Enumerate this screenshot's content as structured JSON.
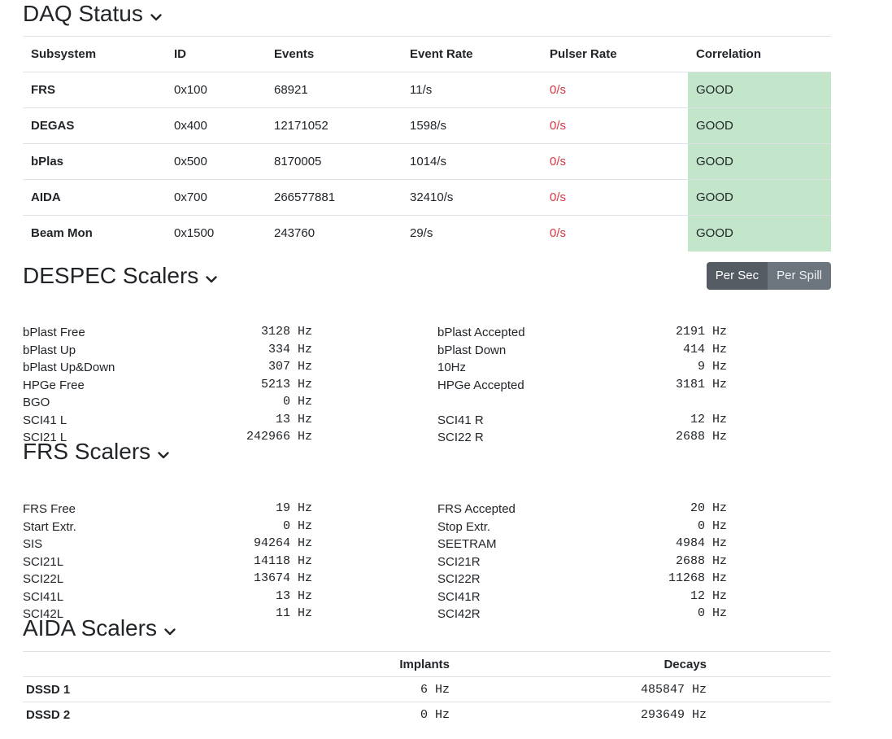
{
  "daq": {
    "title": "DAQ Status",
    "columns": [
      "Subsystem",
      "ID",
      "Events",
      "Event Rate",
      "Pulser Rate",
      "Correlation"
    ],
    "rows": [
      {
        "subsystem": "FRS",
        "id": "0x100",
        "events": "68921",
        "event_rate": "11/s",
        "pulser_rate": "0/s",
        "correlation": "GOOD"
      },
      {
        "subsystem": "DEGAS",
        "id": "0x400",
        "events": "12171052",
        "event_rate": "1598/s",
        "pulser_rate": "0/s",
        "correlation": "GOOD"
      },
      {
        "subsystem": "bPlas",
        "id": "0x500",
        "events": "8170005",
        "event_rate": "1014/s",
        "pulser_rate": "0/s",
        "correlation": "GOOD"
      },
      {
        "subsystem": "AIDA",
        "id": "0x700",
        "events": "266577881",
        "event_rate": "32410/s",
        "pulser_rate": "0/s",
        "correlation": "GOOD"
      },
      {
        "subsystem": "Beam Mon",
        "id": "0x1500",
        "events": "243760",
        "event_rate": "29/s",
        "pulser_rate": "0/s",
        "correlation": "GOOD"
      }
    ]
  },
  "despec": {
    "title": "DESPEC Scalers",
    "buttons": {
      "per_sec": "Per Sec",
      "per_spill": "Per Spill"
    },
    "left": [
      {
        "label": "bPlast Free",
        "value": "3128 Hz"
      },
      {
        "label": "bPlast Up",
        "value": "334 Hz"
      },
      {
        "label": "bPlast Up&Down",
        "value": "307 Hz"
      },
      {
        "label": "HPGe Free",
        "value": "5213 Hz"
      },
      {
        "label": "BGO",
        "value": "0 Hz"
      },
      {
        "label": "SCI41 L",
        "value": "13 Hz"
      },
      {
        "label": "SCI21 L",
        "value": "242966 Hz"
      }
    ],
    "right": [
      {
        "label": "bPlast Accepted",
        "value": "2191 Hz"
      },
      {
        "label": "bPlast Down",
        "value": "414 Hz"
      },
      {
        "label": "10Hz",
        "value": "9 Hz"
      },
      {
        "label": "HPGe Accepted",
        "value": "3181 Hz"
      },
      {
        "label": "",
        "value": ""
      },
      {
        "label": "SCI41 R",
        "value": "12 Hz"
      },
      {
        "label": "SCI22 R",
        "value": "2688 Hz"
      }
    ]
  },
  "frs": {
    "title": "FRS Scalers",
    "left": [
      {
        "label": "FRS Free",
        "value": "19 Hz"
      },
      {
        "label": "Start Extr.",
        "value": "0 Hz"
      },
      {
        "label": "SIS",
        "value": "94264 Hz"
      },
      {
        "label": "SCI21L",
        "value": "14118 Hz"
      },
      {
        "label": "SCI22L",
        "value": "13674 Hz"
      },
      {
        "label": "SCI41L",
        "value": "13 Hz"
      },
      {
        "label": "SCI42L",
        "value": "11 Hz"
      }
    ],
    "right": [
      {
        "label": "FRS Accepted",
        "value": "20 Hz"
      },
      {
        "label": "Stop Extr.",
        "value": "0 Hz"
      },
      {
        "label": "SEETRAM",
        "value": "4984 Hz"
      },
      {
        "label": "SCI21R",
        "value": "2688 Hz"
      },
      {
        "label": "SCI22R",
        "value": "11268 Hz"
      },
      {
        "label": "SCI41R",
        "value": "12 Hz"
      },
      {
        "label": "SCI42R",
        "value": "0 Hz"
      }
    ]
  },
  "aida": {
    "title": "AIDA Scalers",
    "columns": [
      "",
      "Implants",
      "Decays"
    ],
    "rows": [
      {
        "name": "DSSD 1",
        "implants": "6 Hz",
        "decays": "485847 Hz"
      },
      {
        "name": "DSSD 2",
        "implants": "0 Hz",
        "decays": "293649 Hz"
      }
    ]
  },
  "icons": {
    "collapse": "chevron-down-icon"
  },
  "colors": {
    "good_bg": "#c3e6cb",
    "bad_text": "#dc3545",
    "button_active": "#545b62",
    "button": "#6c757d"
  }
}
